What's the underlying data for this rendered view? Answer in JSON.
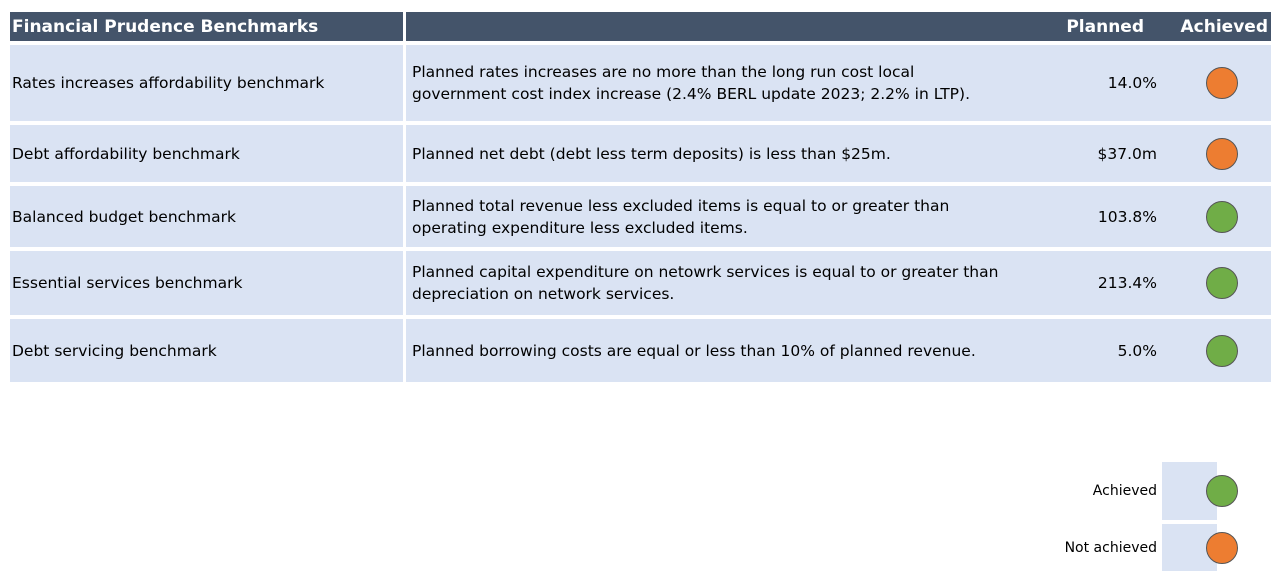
{
  "header": {
    "title": "Financial Prudence Benchmarks",
    "planned": "Planned",
    "achieved": "Achieved"
  },
  "table": {
    "rows": [
      {
        "benchmark": "Rates increases affordability benchmark",
        "description": "Planned rates increases are no more than the long run cost local government cost index increase (2.4% BERL update 2023; 2.2% in LTP).",
        "planned": "14.0%",
        "color": "#ed7d31"
      },
      {
        "benchmark": "Debt affordability benchmark",
        "description": "Planned net debt (debt less term deposits) is less than $25m.",
        "planned": "$37.0m",
        "color": "#ed7d31"
      },
      {
        "benchmark": "Balanced budget benchmark",
        "description": "Planned total revenue less excluded items is equal to or greater than operating expenditure less excluded items.",
        "planned": "103.8%",
        "color": "#70ad47"
      },
      {
        "benchmark": "Essential services benchmark",
        "description": "Planned capital expenditure on netowrk services is equal to or greater than depreciation on network services.",
        "planned": "213.4%",
        "color": "#70ad47"
      },
      {
        "benchmark": "Debt servicing benchmark",
        "description": "Planned borrowing costs are equal or less than 10% of planned revenue.",
        "planned": "5.0%",
        "color": "#70ad47"
      }
    ]
  },
  "legend": [
    {
      "label": "Achieved",
      "color": "#70ad47"
    },
    {
      "label": "Not achieved",
      "color": "#ed7d31"
    }
  ]
}
